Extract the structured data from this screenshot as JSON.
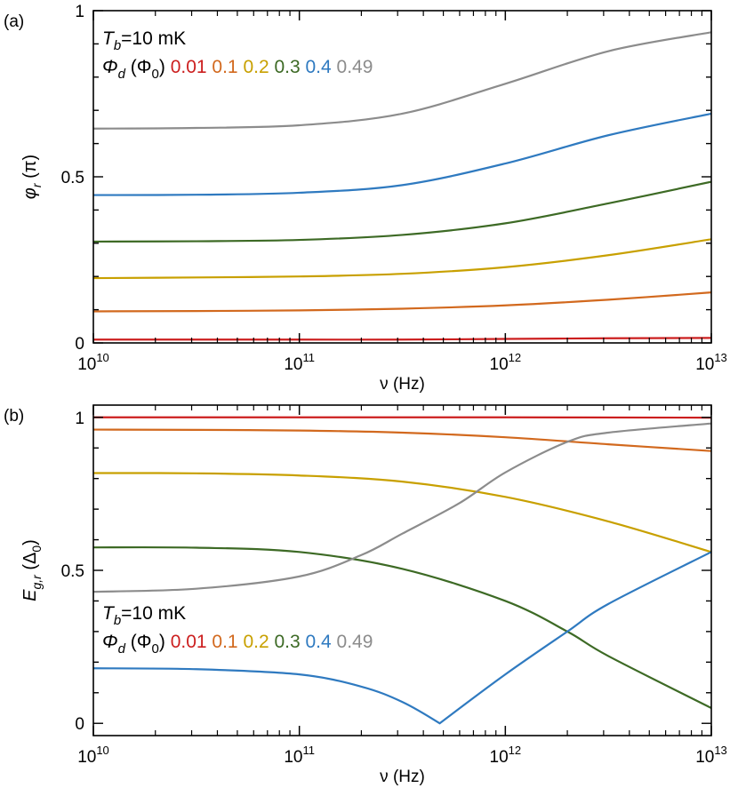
{
  "chart_data": [
    {
      "type": "line",
      "panel_label": "(a)",
      "xlabel": "ν (Hz)",
      "ylabel": {
        "main": "φ",
        "sub": "r",
        "unit": "(π)"
      },
      "xscale": "log",
      "xlim": [
        10000000000.0,
        10000000000000.0
      ],
      "ylim": [
        0,
        1
      ],
      "xticks": [
        {
          "base": "10",
          "exp": "10",
          "value": 10000000000.0
        },
        {
          "base": "10",
          "exp": "11",
          "value": 100000000000.0
        },
        {
          "base": "10",
          "exp": "12",
          "value": 1000000000000.0
        },
        {
          "base": "10",
          "exp": "13",
          "value": 10000000000000.0
        }
      ],
      "yticks": [
        {
          "label": "0",
          "value": 0
        },
        {
          "label": "0.5",
          "value": 0.5
        },
        {
          "label": "1",
          "value": 1
        }
      ],
      "annotation": {
        "tb_main": "T",
        "tb_sub": "b",
        "tb_rest": "=10 mK",
        "phi_main": "Φ",
        "phi_sub": "d",
        "phi_unit": " (Φ",
        "phi_unit_sub": "0",
        "phi_close": ")"
      },
      "legend_position": "top-left",
      "x": [
        10000000000.0,
        31600000000.0,
        100000000000.0,
        316000000000.0,
        1000000000000.0,
        3160000000000.0,
        10000000000000.0
      ],
      "series": [
        {
          "name": "0.01",
          "color": "#cc1f1f",
          "values": [
            0.01,
            0.01,
            0.01,
            0.01,
            0.012,
            0.014,
            0.015
          ]
        },
        {
          "name": "0.1",
          "color": "#d2691e",
          "values": [
            0.095,
            0.096,
            0.098,
            0.103,
            0.113,
            0.13,
            0.152
          ]
        },
        {
          "name": "0.2",
          "color": "#c8a000",
          "values": [
            0.195,
            0.197,
            0.2,
            0.208,
            0.228,
            0.264,
            0.312
          ]
        },
        {
          "name": "0.3",
          "color": "#3d6a25",
          "values": [
            0.305,
            0.306,
            0.31,
            0.325,
            0.36,
            0.42,
            0.485
          ]
        },
        {
          "name": "0.4",
          "color": "#2f7ac0",
          "values": [
            0.445,
            0.446,
            0.452,
            0.475,
            0.54,
            0.625,
            0.69
          ]
        },
        {
          "name": "0.49",
          "color": "#8c8c8c",
          "values": [
            0.645,
            0.647,
            0.655,
            0.69,
            0.78,
            0.878,
            0.935
          ]
        }
      ]
    },
    {
      "type": "line",
      "panel_label": "(b)",
      "xlabel": "ν (Hz)",
      "ylabel": {
        "main": "E",
        "sub": "g,r",
        "unit": "(Δ",
        "unit_sub": "0",
        "unit_close": ")"
      },
      "xscale": "log",
      "xlim": [
        10000000000.0,
        10000000000000.0
      ],
      "ylim": [
        -0.04,
        1.04
      ],
      "xticks": [
        {
          "base": "10",
          "exp": "10",
          "value": 10000000000.0
        },
        {
          "base": "10",
          "exp": "11",
          "value": 100000000000.0
        },
        {
          "base": "10",
          "exp": "12",
          "value": 1000000000000.0
        },
        {
          "base": "10",
          "exp": "13",
          "value": 10000000000000.0
        }
      ],
      "yticks": [
        {
          "label": "0",
          "value": 0
        },
        {
          "label": "0.5",
          "value": 0.5
        },
        {
          "label": "1",
          "value": 1
        }
      ],
      "annotation": {
        "tb_main": "T",
        "tb_sub": "b",
        "tb_rest": "=10 mK",
        "phi_main": "Φ",
        "phi_sub": "d",
        "phi_unit": " (Φ",
        "phi_unit_sub": "0",
        "phi_close": ")"
      },
      "legend_position": "bottom-left",
      "series": [
        {
          "name": "0.01",
          "color": "#cc1f1f",
          "x": [
            10000000000.0,
            100000000000.0,
            1000000000000.0,
            10000000000000.0
          ],
          "values": [
            1.0,
            1.0,
            1.0,
            0.999
          ]
        },
        {
          "name": "0.1",
          "color": "#d2691e",
          "x": [
            10000000000.0,
            31600000000.0,
            100000000000.0,
            316000000000.0,
            1000000000000.0,
            3160000000000.0,
            10000000000000.0
          ],
          "values": [
            0.96,
            0.959,
            0.957,
            0.95,
            0.935,
            0.912,
            0.89
          ]
        },
        {
          "name": "0.2",
          "color": "#c8a000",
          "x": [
            10000000000.0,
            31600000000.0,
            100000000000.0,
            316000000000.0,
            1000000000000.0,
            3160000000000.0,
            10000000000000.0
          ],
          "values": [
            0.818,
            0.817,
            0.81,
            0.79,
            0.74,
            0.66,
            0.56
          ]
        },
        {
          "name": "0.3",
          "color": "#3d6a25",
          "x": [
            10000000000.0,
            31600000000.0,
            100000000000.0,
            316000000000.0,
            1000000000000.0,
            2000000000000.0,
            3160000000000.0,
            10000000000000.0
          ],
          "values": [
            0.575,
            0.574,
            0.56,
            0.505,
            0.4,
            0.3,
            0.22,
            0.05
          ]
        },
        {
          "name": "0.4",
          "color": "#2f7ac0",
          "x": [
            10000000000.0,
            31600000000.0,
            100000000000.0,
            200000000000.0,
            316000000000.0,
            480000000000.0,
            1000000000000.0,
            2000000000000.0,
            3160000000000.0,
            10000000000000.0
          ],
          "values": [
            0.18,
            0.177,
            0.16,
            0.12,
            0.07,
            0.0,
            0.16,
            0.3,
            0.39,
            0.56
          ]
        },
        {
          "name": "0.49",
          "color": "#8c8c8c",
          "x": [
            10000000000.0,
            31600000000.0,
            100000000000.0,
            200000000000.0,
            316000000000.0,
            600000000000.0,
            1000000000000.0,
            2000000000000.0,
            3160000000000.0,
            10000000000000.0
          ],
          "values": [
            0.43,
            0.44,
            0.48,
            0.55,
            0.62,
            0.72,
            0.82,
            0.92,
            0.95,
            0.98
          ]
        }
      ]
    }
  ]
}
